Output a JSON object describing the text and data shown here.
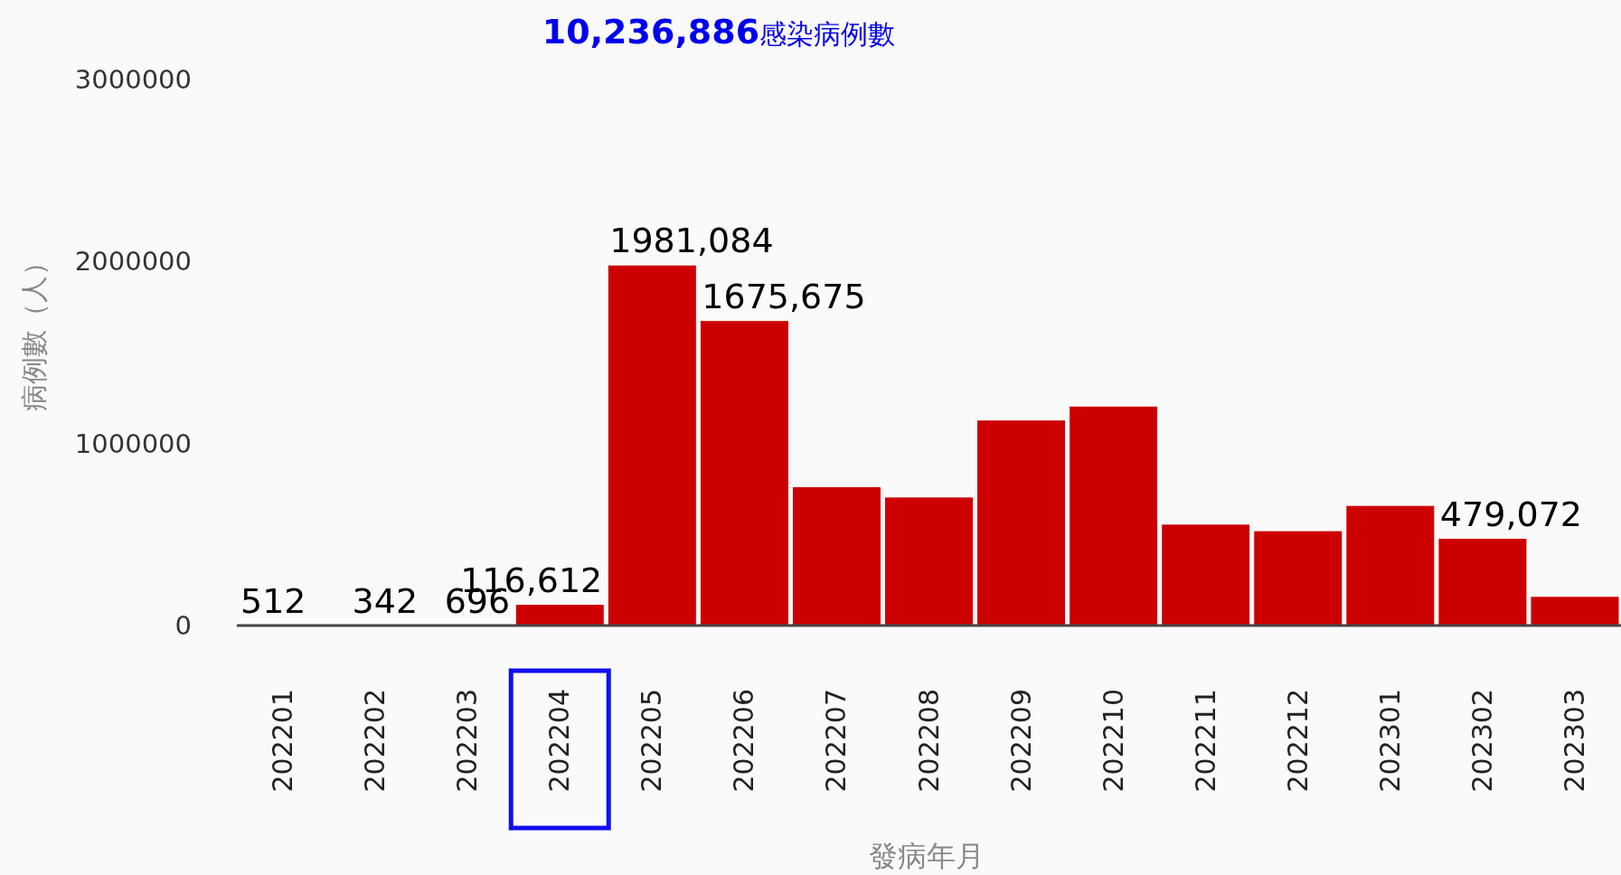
{
  "chart_data": {
    "type": "bar",
    "title": "**10,236,886**感染病例數",
    "xlabel": "發病年月",
    "ylabel": "病例數（人）",
    "categories": [
      "202201",
      "202202",
      "202203",
      "202204",
      "202205",
      "202206",
      "202207",
      "202208",
      "202209",
      "202210",
      "202211",
      "202212",
      "202301",
      "202302",
      "202303"
    ],
    "values": [
      512,
      342,
      696,
      116612,
      1981084,
      1675675,
      763000,
      706000,
      1129000,
      1206000,
      557000,
      521000,
      660000,
      479072,
      160000
    ],
    "value_labels": [
      "512",
      "342",
      "696",
      "116,612",
      "1981,084",
      "1675,675",
      null,
      null,
      null,
      null,
      null,
      null,
      null,
      "479,072",
      null
    ],
    "color": "#cc0000",
    "ylim": [
      0,
      3000000
    ],
    "yticks": [
      0,
      1000000,
      2000000,
      3000000
    ]
  }
}
